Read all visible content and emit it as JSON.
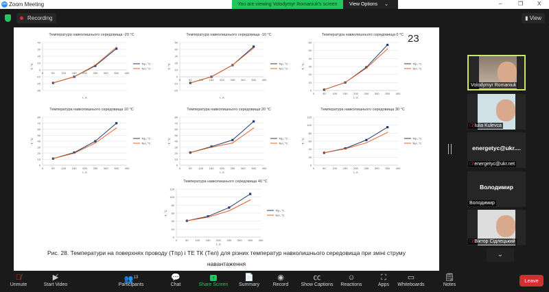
{
  "window": {
    "title": "Zoom Meeting",
    "banner": "You are viewing Volodymyr Romaniuk's screen",
    "view_options": "View Options",
    "minimize": "–",
    "restore": "❐",
    "close": "X"
  },
  "topbar": {
    "recording": "Recording",
    "view": "View"
  },
  "slide": {
    "page_number": "23",
    "caption_line1": "Рис. 28. Температури на поверхнях проводу (Tпр) і ТЕ ТК (Tел) для різних температур навколишнього середовища при зміні струму",
    "caption_line2": "навантаження"
  },
  "chart_data": [
    {
      "type": "line",
      "title": "Температура навколишнього середовища -20 °C",
      "xlabel": "I, A",
      "ylabel": "T, °C",
      "x": [
        50,
        150,
        250,
        350
      ],
      "xlim": [
        0,
        400
      ],
      "xstep": 50,
      "ylim": [
        -30,
        40
      ],
      "ystep": 10,
      "legend": "right",
      "series": [
        {
          "name": "Тпр, °C",
          "values": [
            -19,
            -10,
            6,
            31
          ]
        },
        {
          "name": "Тел, °C",
          "values": [
            -19,
            -10,
            7,
            33
          ]
        }
      ]
    },
    {
      "type": "line",
      "title": "Температура навколишнього середовища -10 °C",
      "xlabel": "I, A",
      "ylabel": "T, °C",
      "x": [
        50,
        150,
        250,
        350
      ],
      "xlim": [
        0,
        400
      ],
      "xstep": 50,
      "ylim": [
        -20,
        50
      ],
      "ystep": 10,
      "legend": "right",
      "series": [
        {
          "name": "Тпр, °C",
          "values": [
            -9,
            0,
            17,
            44
          ]
        },
        {
          "name": "Тел, °C",
          "values": [
            -9,
            0,
            17,
            42
          ]
        }
      ]
    },
    {
      "type": "line",
      "title": "Температура навколишнього середовища 0 °C",
      "xlabel": "I, A",
      "ylabel": "T, °C",
      "x": [
        50,
        150,
        250,
        350
      ],
      "xlim": [
        0,
        400
      ],
      "xstep": 50,
      "ylim": [
        0,
        60
      ],
      "ystep": 10,
      "legend": "right",
      "series": [
        {
          "name": "Тпр, °C",
          "values": [
            1,
            10,
            29,
            57
          ]
        },
        {
          "name": "Тел, °C",
          "values": [
            1,
            10,
            28,
            52
          ]
        }
      ]
    },
    {
      "type": "line",
      "title": "Температура навколишнього середовища 10 °C",
      "xlabel": "I, A",
      "ylabel": "T, °C",
      "x": [
        50,
        150,
        250,
        350
      ],
      "xlim": [
        0,
        400
      ],
      "xstep": 50,
      "ylim": [
        0,
        80
      ],
      "ystep": 10,
      "legend": "right",
      "series": [
        {
          "name": "Тпр, °C",
          "values": [
            11,
            21,
            40,
            70
          ]
        },
        {
          "name": "Тел, °C",
          "values": [
            11,
            20,
            37,
            62
          ]
        }
      ]
    },
    {
      "type": "line",
      "title": "Температура навколишнього середовища 20 °C",
      "xlabel": "I, A",
      "ylabel": "T, °C",
      "x": [
        50,
        150,
        250,
        350
      ],
      "xlim": [
        0,
        400
      ],
      "xstep": 50,
      "ylim": [
        0,
        80
      ],
      "ystep": 10,
      "legend": "right",
      "series": [
        {
          "name": "Тпр, °C",
          "values": [
            21,
            31,
            42,
            73
          ]
        },
        {
          "name": "Тел, °C",
          "values": [
            21,
            30,
            37,
            62
          ]
        }
      ]
    },
    {
      "type": "line",
      "title": "Температура навколишнього середовища 30 °C",
      "xlabel": "I, A",
      "ylabel": "T, °C",
      "x": [
        50,
        150,
        250,
        350
      ],
      "xlim": [
        0,
        400
      ],
      "xstep": 50,
      "ylim": [
        0,
        120
      ],
      "ystep": 20,
      "legend": "right",
      "series": [
        {
          "name": "Тпр, °C",
          "values": [
            31,
            42,
            63,
            95
          ]
        },
        {
          "name": "Тел, °C",
          "values": [
            31,
            41,
            56,
            82
          ]
        }
      ]
    },
    {
      "type": "line",
      "title": "Температура навколишнього середовища 40 °C",
      "xlabel": "I, A",
      "ylabel": "T, °C",
      "x": [
        50,
        150,
        250,
        350
      ],
      "xlim": [
        0,
        400
      ],
      "xstep": 50,
      "ylim": [
        0,
        120
      ],
      "ystep": 20,
      "legend": "right",
      "series": [
        {
          "name": "Тпр, °C",
          "values": [
            41,
            52,
            74,
            108
          ]
        },
        {
          "name": "Тел, °C",
          "values": [
            41,
            50,
            66,
            93
          ]
        }
      ]
    }
  ],
  "colors": {
    "series": [
      "#1f3b6e",
      "#e0602a"
    ],
    "share": "#22c55e",
    "leave": "#d32f2f"
  },
  "participants": [
    {
      "name": "Volodymyr Romaniuk",
      "video": true,
      "muted": false,
      "active": true
    },
    {
      "name": "Iulia Kulevca",
      "video": true,
      "muted": true
    },
    {
      "display": "energetyc@ukr....",
      "name": "energetyc@ukr.net",
      "video": false,
      "muted": true
    },
    {
      "display": "Володимир",
      "name": "Володимир",
      "video": false,
      "muted": false
    },
    {
      "name": "Віктор Сідлецький",
      "video": true,
      "muted": true
    }
  ],
  "toolbar": {
    "unmute": "Unmute",
    "start_video": "Start Video",
    "participants": "Participants",
    "participants_count": "13",
    "chat": "Chat",
    "share_screen": "Share Screen",
    "summary": "Summary",
    "record": "Record",
    "captions": "Show Captions",
    "reactions": "Reactions",
    "apps": "Apps",
    "whiteboards": "Whiteboards",
    "notes": "Notes",
    "leave": "Leave"
  }
}
